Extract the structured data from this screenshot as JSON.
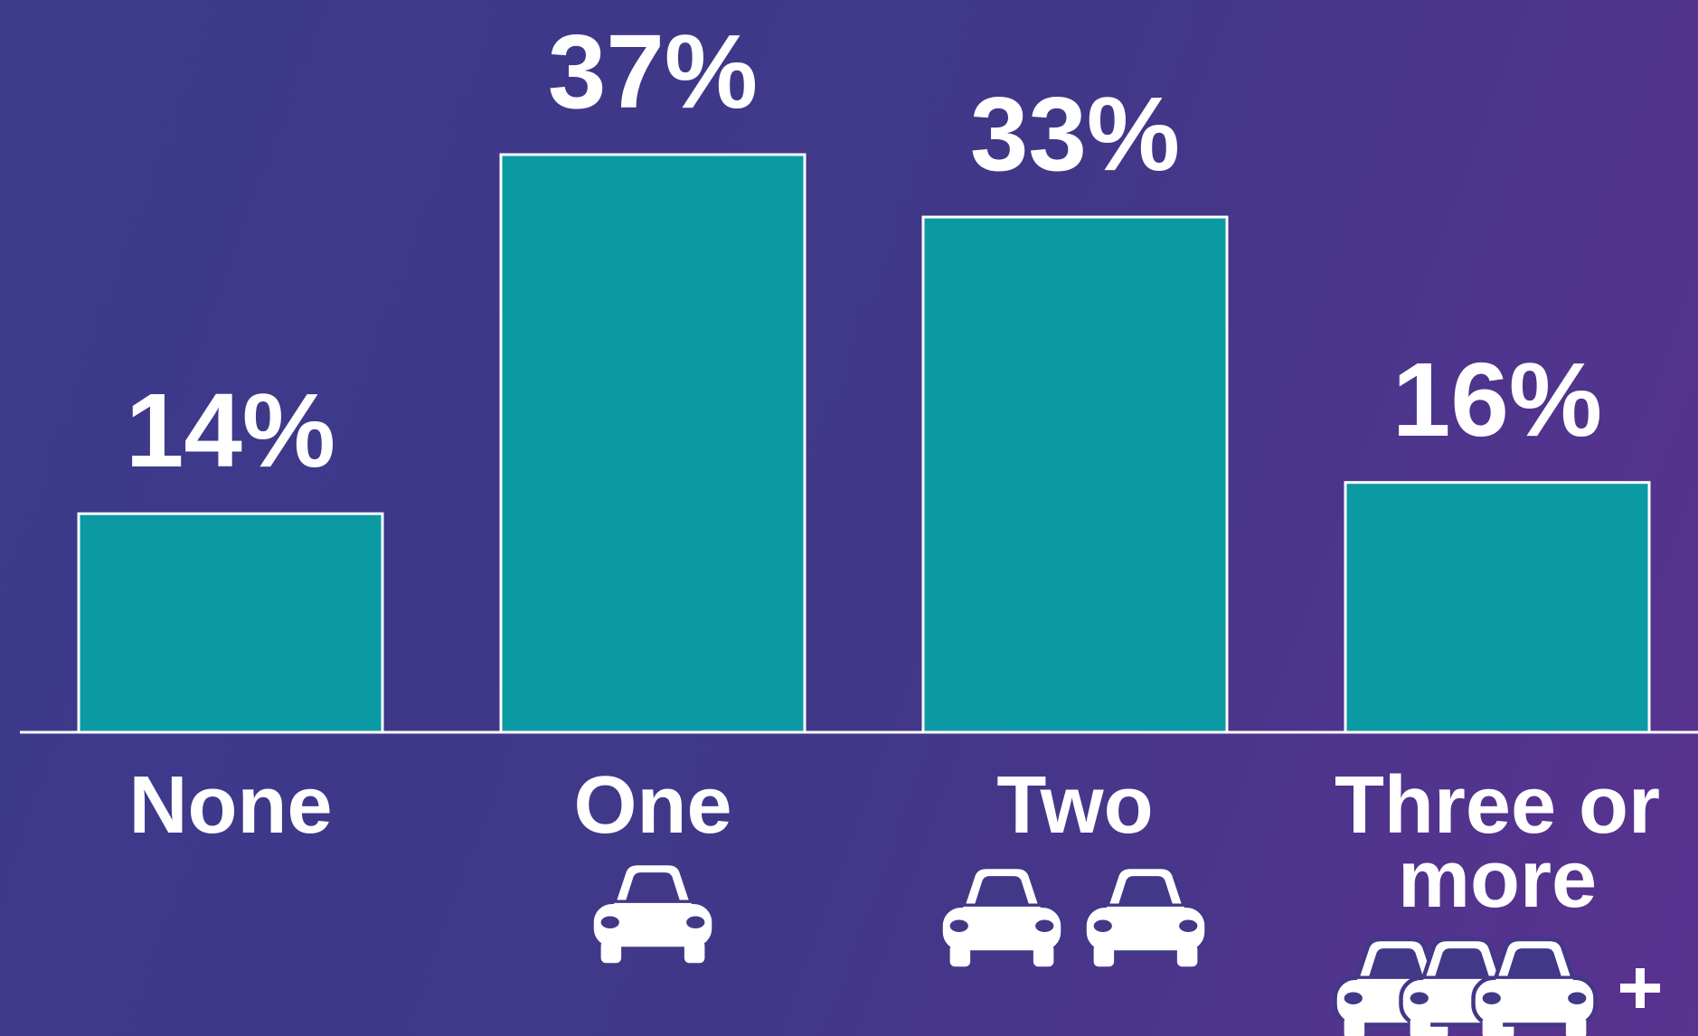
{
  "chart_data": {
    "type": "bar",
    "categories": [
      "None",
      "One",
      "Two",
      "Three or more"
    ],
    "values": [
      14,
      37,
      33,
      16
    ],
    "value_labels": [
      "14%",
      "37%",
      "33%",
      "16%"
    ],
    "color": "#0b9aa3"
  }
}
